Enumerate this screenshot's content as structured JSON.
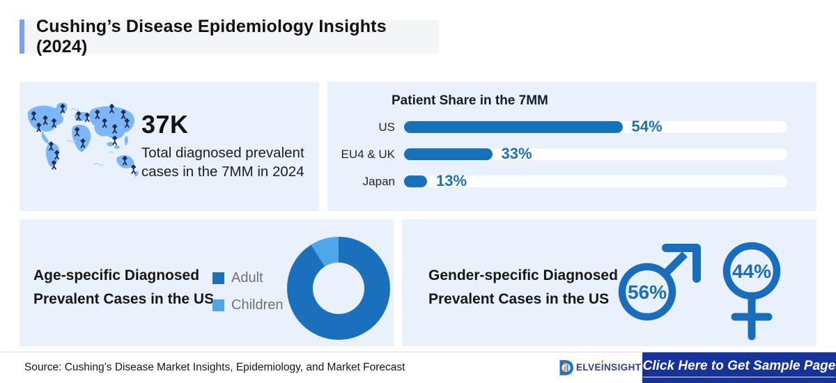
{
  "header": {
    "title": "Cushing’s Disease Epidemiology Insights (2024)"
  },
  "panels": {
    "prevalence": {
      "value": "37K",
      "line1": "Total diagnosed prevalent",
      "line2": "cases in the 7MM in 2024"
    },
    "patient_share": {
      "title": "Patient Share in the 7MM",
      "rows": [
        {
          "label": "US",
          "pct": "54%"
        },
        {
          "label": "EU4 & UK",
          "pct": "33%"
        },
        {
          "label": "Japan",
          "pct": "13%"
        }
      ]
    },
    "age": {
      "title_line1": "Age-specific Diagnosed",
      "title_line2": "Prevalent Cases in the US",
      "legend": [
        {
          "label": "Adult",
          "color": "#1b70bd"
        },
        {
          "label": "Children",
          "color": "#4da7e8"
        }
      ]
    },
    "gender": {
      "title_line1": "Gender-specific Diagnosed",
      "title_line2": "Prevalent Cases in the US",
      "male_pct": "56%",
      "female_pct": "44%"
    }
  },
  "footer": {
    "source": "Source: Cushing’s Disease Market Insights, Epidemiology, and Market Forecast",
    "logo": {
      "prefix": "ELVE",
      "dotted": "I",
      "suffix": "NSIGHT"
    },
    "cta": "Click Here to Get Sample Page"
  },
  "colors": {
    "panel_bg": "#e9f1fc",
    "accent_border": "#7d9ef5",
    "bar_blue": "#1571ba",
    "pct_blue": "#1b6fc0",
    "donut_adult": "#1b70bd",
    "donut_children": "#4da7e8",
    "symbol_blue": "#1a6cbd",
    "map_land": "#7db6f6",
    "person_dark": "#1e2947",
    "cta_bg": "#16339b",
    "logo_blue": "#2b3e93",
    "logo_orange": "#f7941d"
  },
  "chart_data": [
    {
      "type": "bar",
      "orientation": "horizontal",
      "title": "Patient Share in the 7MM",
      "categories": [
        "US",
        "EU4 & UK",
        "Japan"
      ],
      "values": [
        54,
        33,
        13
      ],
      "unit": "%",
      "xlim": [
        0,
        100
      ],
      "bar_color": "#1571ba",
      "track_color": "#ffffff",
      "bar_track_pct": [
        57,
        23,
        6
      ],
      "value_labels": "right-of-bar"
    },
    {
      "type": "pie",
      "donut": true,
      "title": "Age-specific Diagnosed Prevalent Cases in the US",
      "labels": [
        "Adult",
        "Children"
      ],
      "values": [
        91,
        9
      ],
      "colors": [
        "#1b70bd",
        "#4da7e8"
      ],
      "legend_position": "left"
    },
    {
      "type": "pictogram",
      "title": "Gender-specific Diagnosed Prevalent Cases in the US",
      "labels": [
        "Male",
        "Female"
      ],
      "values": [
        56,
        44
      ],
      "unit": "%"
    }
  ]
}
